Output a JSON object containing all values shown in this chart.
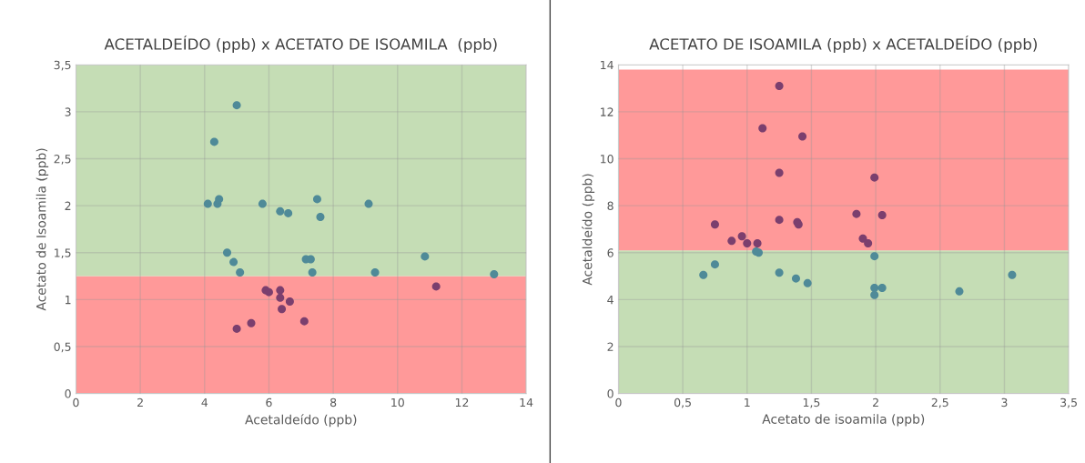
{
  "chart_data": [
    {
      "type": "scatter",
      "title": "ACETALDEÍDO (ppb) x ACETATO DE ISOAMILA  (ppb)",
      "xlabel": "Acetaldeído (ppb)",
      "ylabel": "Acetato de Isoamila (ppb)",
      "xlim": [
        0,
        14
      ],
      "xticks": [
        0,
        2,
        4,
        6,
        8,
        10,
        12,
        14
      ],
      "ylim": [
        0,
        3.5
      ],
      "yticks": [
        0,
        {
          "value": 0.5,
          "label": "0,5"
        },
        1,
        {
          "value": 1.5,
          "label": "1,5"
        },
        2,
        {
          "value": 2.5,
          "label": "2,5"
        },
        3,
        {
          "value": 3.5,
          "label": "3,5"
        }
      ],
      "grid": true,
      "marker": "circle",
      "bands": [
        {
          "axis": "y",
          "from": 0,
          "to": 1.25,
          "color": "#ff9999"
        },
        {
          "axis": "y",
          "from": 1.25,
          "to": 3.5,
          "color": "#c5ddb5"
        }
      ],
      "series": [
        {
          "color": "#4f8a98",
          "x": [
            5.0,
            4.3,
            4.1,
            4.4,
            4.45,
            5.8,
            6.35,
            6.6,
            7.5,
            7.6,
            9.1,
            4.7,
            4.9,
            5.1,
            7.15,
            7.3,
            7.35,
            9.3,
            10.85,
            13.0
          ],
          "values": [
            3.07,
            2.68,
            2.02,
            2.02,
            2.07,
            2.02,
            1.94,
            1.92,
            2.07,
            1.88,
            2.02,
            1.5,
            1.4,
            1.29,
            1.43,
            1.43,
            1.29,
            1.29,
            1.46,
            1.27
          ]
        },
        {
          "color": "#7b3f6e",
          "x": [
            5.9,
            6.0,
            6.35,
            6.35,
            6.65,
            6.4,
            5.45,
            5.0,
            7.1,
            11.2
          ],
          "values": [
            1.1,
            1.08,
            1.1,
            1.02,
            0.98,
            0.9,
            0.75,
            0.69,
            0.77,
            1.14
          ]
        }
      ]
    },
    {
      "type": "scatter",
      "title": "ACETATO DE ISOAMILA (ppb) x ACETALDEÍDO (ppb)",
      "xlabel": "Acetato de isoamila (ppb)",
      "ylabel": "Acetaldeído (ppb)",
      "xlim": [
        0,
        3.5
      ],
      "xticks": [
        0,
        {
          "value": 0.5,
          "label": "0,5"
        },
        1,
        {
          "value": 1.5,
          "label": "1,5"
        },
        2,
        {
          "value": 2.5,
          "label": "2,5"
        },
        3,
        {
          "value": 3.5,
          "label": "3,5"
        }
      ],
      "ylim": [
        0,
        14
      ],
      "yticks": [
        0,
        2,
        4,
        6,
        8,
        10,
        12,
        14
      ],
      "grid": true,
      "marker": "circle",
      "bands": [
        {
          "axis": "y",
          "from": 0,
          "to": 6.1,
          "color": "#c5ddb5"
        },
        {
          "axis": "y",
          "from": 6.1,
          "to": 13.8,
          "color": "#ff9999"
        }
      ],
      "series": [
        {
          "color": "#7b3f6e",
          "x": [
            1.25,
            1.12,
            1.43,
            1.25,
            1.99,
            0.75,
            1.25,
            1.39,
            1.4,
            1.85,
            2.05,
            0.88,
            0.96,
            1.0,
            1.08,
            1.9,
            1.94
          ],
          "values": [
            13.1,
            11.3,
            10.95,
            9.4,
            9.2,
            7.2,
            7.4,
            7.3,
            7.2,
            7.65,
            7.6,
            6.5,
            6.7,
            6.4,
            6.4,
            6.6,
            6.4
          ]
        },
        {
          "color": "#4f8a98",
          "x": [
            1.07,
            1.09,
            0.66,
            0.75,
            1.25,
            1.38,
            1.47,
            1.99,
            1.99,
            1.99,
            2.05,
            2.65,
            3.06
          ],
          "values": [
            6.05,
            6.0,
            5.05,
            5.5,
            5.15,
            4.9,
            4.7,
            5.85,
            4.5,
            4.2,
            4.5,
            4.35,
            5.05
          ]
        }
      ]
    }
  ]
}
